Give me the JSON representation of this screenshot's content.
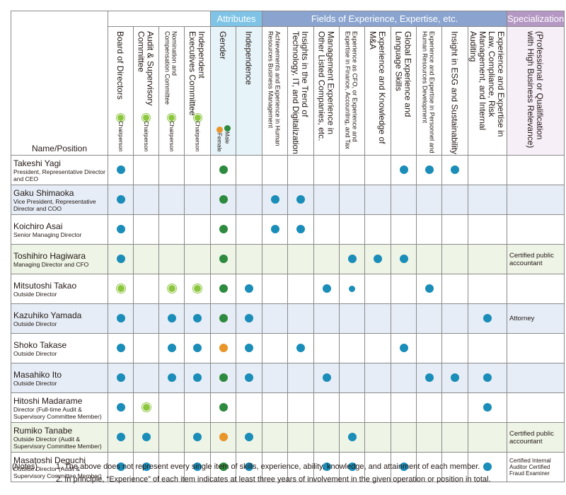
{
  "groups": {
    "attributes": "Attributes",
    "fields": "Fields of Experience, Expertise, etc.",
    "specialization": "Specialization"
  },
  "columns": {
    "board": "Board of Directors",
    "audit": "Audit & Supervisory Committee",
    "nomination": "Nomination and Compensation Committee",
    "independent": "Independent Executives Committee",
    "gender": "Gender",
    "independence": "Independence",
    "f1": "Achievements and Experience in Human Resources Business Management",
    "f2": "Insights in the Trend of Technology, IT, and Digitalization",
    "f3": "Management Experience in Other Listed Companies, etc.",
    "f4": "Experience as CFO, or Experience and Expertise in Finance, Accounting, and Tax",
    "f5": "Experience and Knowledge of M&A",
    "f6": "Global Experience and Language Skills",
    "f7": "Experience and Expertise in Personnel and Human Resources Development",
    "f8": "Insight in ESG and Sustainability",
    "f9": "Experience and Expertise in Law, Compliance, Risk Management, and Internal Auditing",
    "spec": "(Professional or Qualification with High Business Relevance)",
    "name": "Name/Position"
  },
  "legend": {
    "chair": "Chairperson",
    "male": "Male",
    "female": "Female"
  },
  "rows": [
    {
      "name": "Takeshi Yagi",
      "position": "President, Representative Director and CEO",
      "marks": [
        "b",
        "",
        "",
        "",
        "M",
        "",
        "",
        "",
        "",
        "",
        "",
        "b",
        "b",
        "b",
        ""
      ],
      "spec": ""
    },
    {
      "name": "Gaku Shimaoka",
      "position": "Vice President, Representative Director and COO",
      "marks": [
        "b",
        "",
        "",
        "",
        "M",
        "",
        "b",
        "b",
        "",
        "",
        "",
        "",
        "",
        "",
        ""
      ],
      "spec": ""
    },
    {
      "name": "Koichiro Asai",
      "position": "Senior Managing Director",
      "marks": [
        "b",
        "",
        "",
        "",
        "M",
        "",
        "b",
        "b",
        "",
        "",
        "",
        "",
        "",
        "",
        ""
      ],
      "spec": ""
    },
    {
      "name": "Toshihiro Hagiwara",
      "position": "Managing Director and CFO",
      "marks": [
        "b",
        "",
        "",
        "",
        "M",
        "",
        "",
        "",
        "",
        "b",
        "b",
        "b",
        "",
        "",
        ""
      ],
      "spec": "Certified public accountant"
    },
    {
      "name": "Mitsutoshi Takao",
      "position": "Outside Director",
      "marks": [
        "c",
        "",
        "c",
        "c",
        "M",
        "b",
        "",
        "",
        "b",
        "bs",
        "",
        "",
        "b",
        "",
        ""
      ],
      "spec": ""
    },
    {
      "name": "Kazuhiko Yamada",
      "position": "Outside Director",
      "marks": [
        "b",
        "",
        "b",
        "b",
        "M",
        "b",
        "",
        "",
        "",
        "",
        "",
        "",
        "",
        "",
        "b"
      ],
      "spec": "Attorney"
    },
    {
      "name": "Shoko Takase",
      "position": "Outside Director",
      "marks": [
        "b",
        "",
        "b",
        "b",
        "F",
        "b",
        "",
        "b",
        "",
        "",
        "",
        "b",
        "",
        "",
        ""
      ],
      "spec": ""
    },
    {
      "name": "Masahiko Ito",
      "position": "Outside Director",
      "marks": [
        "b",
        "",
        "b",
        "b",
        "M",
        "b",
        "",
        "",
        "b",
        "",
        "",
        "",
        "b",
        "b",
        "b"
      ],
      "spec": ""
    },
    {
      "name": "Hitoshi Madarame",
      "position": "Director (Full-time Audit & Supervisory Committee Member)",
      "marks": [
        "b",
        "c",
        "",
        "",
        "M",
        "",
        "",
        "",
        "",
        "",
        "",
        "",
        "",
        "",
        "b"
      ],
      "spec": ""
    },
    {
      "name": "Rumiko Tanabe",
      "position": "Outside Director (Audit & Supervisory Committee Member)",
      "marks": [
        "b",
        "b",
        "",
        "b",
        "F",
        "b",
        "",
        "",
        "",
        "b",
        "",
        "",
        "",
        "",
        ""
      ],
      "spec": "Certified public accountant"
    },
    {
      "name": "Masatoshi Deguchi",
      "position": "Outside Director (Audit & Supervisory Committee Member)",
      "marks": [
        "b",
        "b",
        "",
        "b",
        "M",
        "b",
        "",
        "",
        "b",
        "b",
        "",
        "b",
        "",
        "",
        "b"
      ],
      "spec": "Certified Internal Auditor Certified Fraud Examiner"
    }
  ],
  "notes": {
    "label": "(Notes)",
    "n1": "1. The above does not represent every single item of skills, experience, ability, knowledge, and attainment of each member.",
    "n2": "2. In principle, “Experience” of each item indicates at least three years of involvement in the given operation or position in total."
  }
}
